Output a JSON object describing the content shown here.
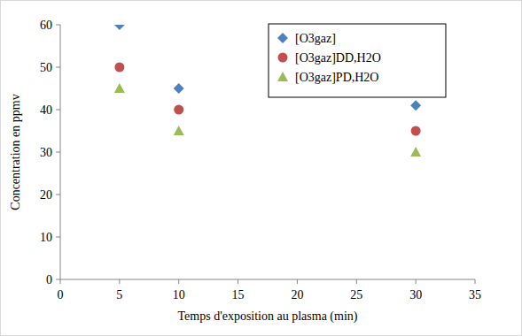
{
  "chart_data": {
    "type": "scatter",
    "x_label": "Temps d'exposition au plasma (min)",
    "y_label": "Concentration en ppmv",
    "x": [
      5,
      10,
      30
    ],
    "series": [
      {
        "name": "[O3gaz]",
        "color": "#4f81bd",
        "marker": "diamond",
        "values": [
          60,
          45,
          41
        ]
      },
      {
        "name": "[O3gaz]DD,H2O",
        "color": "#c0504d",
        "marker": "circle",
        "values": [
          50,
          40,
          35
        ]
      },
      {
        "name": "[O3gaz]PD,H2O",
        "color": "#9bbb59",
        "marker": "triangle",
        "values": [
          45,
          35,
          30
        ]
      }
    ],
    "xlim": [
      0,
      35
    ],
    "xticks": [
      0,
      5,
      10,
      15,
      20,
      25,
      30,
      35
    ],
    "ylim": [
      0,
      60
    ],
    "yticks": [
      0,
      10,
      20,
      30,
      40,
      50,
      60
    ],
    "grid": false,
    "legend": "top-right"
  }
}
